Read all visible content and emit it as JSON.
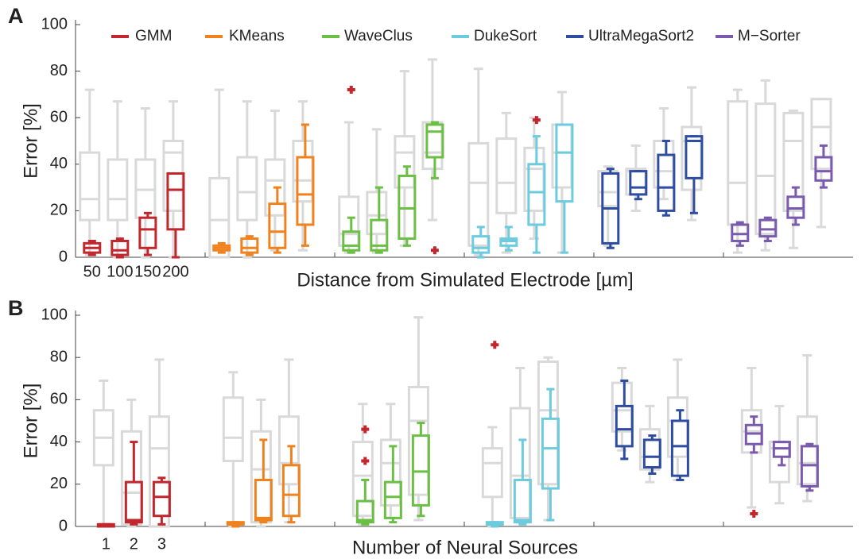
{
  "chart_data": [
    {
      "type": "box",
      "panel_label": "A",
      "x_label": "Distance from Simulated Electrode [µm]",
      "y_label": "Error [%]",
      "categories": [
        "50",
        "100",
        "150",
        "200"
      ],
      "ylim": [
        0,
        100
      ],
      "yticks": [
        0,
        20,
        40,
        60,
        80,
        100
      ],
      "legend": "top",
      "reference_color": "#d9d9d9",
      "outlier_color": "#c1272d",
      "series": [
        {
          "name": "GMM",
          "color": "#c1272d",
          "boxes": [
            {
              "min": 1,
              "q1": 2,
              "median": 4,
              "q3": 6,
              "max": 7
            },
            {
              "min": 0,
              "q1": 1,
              "median": 3,
              "q3": 7,
              "max": 8
            },
            {
              "min": 1,
              "q1": 4,
              "median": 12,
              "q3": 17,
              "max": 19
            },
            {
              "min": 0,
              "q1": 12,
              "median": 29,
              "q3": 36,
              "max": 36
            }
          ],
          "reference": [
            {
              "min": 1,
              "q1": 16,
              "median": 25,
              "q3": 45,
              "max": 72
            },
            {
              "min": 0,
              "q1": 16,
              "median": 25,
              "q3": 42,
              "max": 67
            },
            {
              "min": 0,
              "q1": 17,
              "median": 29,
              "q3": 42,
              "max": 64
            },
            {
              "min": 0,
              "q1": 20,
              "median": 45,
              "q3": 50,
              "max": 67
            }
          ]
        },
        {
          "name": "KMeans",
          "color": "#f0821e",
          "boxes": [
            {
              "min": 2,
              "q1": 3,
              "median": 4,
              "q3": 5,
              "max": 6
            },
            {
              "min": 1,
              "q1": 2,
              "median": 4,
              "q3": 8,
              "max": 9
            },
            {
              "min": 2,
              "q1": 4,
              "median": 11,
              "q3": 23,
              "max": 30
            },
            {
              "min": 5,
              "q1": 14,
              "median": 27,
              "q3": 43,
              "max": 57
            }
          ],
          "reference": [
            {
              "min": 0,
              "q1": 0,
              "median": 16,
              "q3": 34,
              "max": 72
            },
            {
              "min": 0,
              "q1": 16,
              "median": 28,
              "q3": 43,
              "max": 67
            },
            {
              "min": 3,
              "q1": 18,
              "median": 33,
              "q3": 42,
              "max": 63
            },
            {
              "min": 3,
              "q1": 24,
              "median": 33,
              "q3": 50,
              "max": 67
            }
          ]
        },
        {
          "name": "WaveClus",
          "color": "#6bbf45",
          "boxes": [
            {
              "min": 2,
              "q1": 3,
              "median": 5,
              "q3": 11,
              "max": 17,
              "outliers": [
                72
              ]
            },
            {
              "min": 2,
              "q1": 3,
              "median": 5,
              "q3": 16,
              "max": 30
            },
            {
              "min": 5,
              "q1": 8,
              "median": 21,
              "q3": 35,
              "max": 39
            },
            {
              "min": 34,
              "q1": 43,
              "median": 54,
              "q3": 57,
              "max": 58,
              "outliers": [
                3
              ]
            }
          ],
          "reference": [
            {
              "min": 2,
              "q1": 5,
              "median": 10,
              "q3": 26,
              "max": 58
            },
            {
              "min": 2,
              "q1": 10,
              "median": 18,
              "q3": 28,
              "max": 55
            },
            {
              "min": 5,
              "q1": 30,
              "median": 45,
              "q3": 52,
              "max": 80
            },
            {
              "min": 16,
              "q1": 38,
              "median": 45,
              "q3": 58,
              "max": 85
            }
          ]
        },
        {
          "name": "DukeSort",
          "color": "#6ccbdc",
          "boxes": [
            {
              "min": 0,
              "q1": 2,
              "median": 4,
              "q3": 9,
              "max": 13
            },
            {
              "min": 3,
              "q1": 5,
              "median": 7,
              "q3": 8,
              "max": 13
            },
            {
              "min": 2,
              "q1": 14,
              "median": 28,
              "q3": 40,
              "max": 52,
              "outliers": [
                59
              ]
            },
            {
              "min": 2,
              "q1": 24,
              "median": 45,
              "q3": 57,
              "max": 57
            }
          ],
          "reference": [
            {
              "min": 1,
              "q1": 5,
              "median": 32,
              "q3": 49,
              "max": 81
            },
            {
              "min": 2,
              "q1": 19,
              "median": 32,
              "q3": 51,
              "max": 62
            },
            {
              "min": 8,
              "q1": 20,
              "median": 38,
              "q3": 47,
              "max": 60
            },
            {
              "min": 2,
              "q1": 30,
              "median": 45,
              "q3": 57,
              "max": 71
            }
          ]
        },
        {
          "name": "UltraMegaSort2",
          "color": "#2e4da0",
          "boxes": [
            {
              "min": 4,
              "q1": 6,
              "median": 21,
              "q3": 36,
              "max": 38
            },
            {
              "min": 25,
              "q1": 27,
              "median": 30,
              "q3": 37,
              "max": 37
            },
            {
              "min": 18,
              "q1": 20,
              "median": 30,
              "q3": 44,
              "max": 50
            },
            {
              "min": 19,
              "q1": 34,
              "median": 50,
              "q3": 52,
              "max": 52
            }
          ],
          "reference": [
            {
              "min": 5,
              "q1": 22,
              "median": 28,
              "q3": 37,
              "max": 39
            },
            {
              "min": 20,
              "q1": 27,
              "median": 37,
              "q3": 38,
              "max": 48
            },
            {
              "min": 25,
              "q1": 30,
              "median": 37,
              "q3": 50,
              "max": 64
            },
            {
              "min": 16,
              "q1": 29,
              "median": 50,
              "q3": 56,
              "max": 73
            }
          ]
        },
        {
          "name": "M−Sorter",
          "color": "#7a5aad",
          "boxes": [
            {
              "min": 5,
              "q1": 7,
              "median": 10,
              "q3": 14,
              "max": 15
            },
            {
              "min": 7,
              "q1": 9,
              "median": 12,
              "q3": 16,
              "max": 17
            },
            {
              "min": 14,
              "q1": 17,
              "median": 21,
              "q3": 26,
              "max": 30
            },
            {
              "min": 30,
              "q1": 33,
              "median": 37,
              "q3": 43,
              "max": 48
            }
          ],
          "reference": [
            {
              "min": 2,
              "q1": 14,
              "median": 32,
              "q3": 67,
              "max": 72
            },
            {
              "min": 3,
              "q1": 10,
              "median": 35,
              "q3": 66,
              "max": 76
            },
            {
              "min": 4,
              "q1": 20,
              "median": 50,
              "q3": 62,
              "max": 63
            },
            {
              "min": 13,
              "q1": 38,
              "median": 56,
              "q3": 68,
              "max": 68
            }
          ]
        }
      ]
    },
    {
      "type": "box",
      "panel_label": "B",
      "x_label": "Number of Neural Sources",
      "y_label": "Error [%]",
      "categories": [
        "1",
        "2",
        "3"
      ],
      "ylim": [
        0,
        100
      ],
      "yticks": [
        0,
        20,
        40,
        60,
        80,
        100
      ],
      "reference_color": "#d9d9d9",
      "outlier_color": "#c1272d",
      "series": [
        {
          "color": "#c1272d",
          "boxes": [
            {
              "min": 0,
              "q1": 0,
              "median": 1,
              "q3": 1,
              "max": 1
            },
            {
              "min": 1,
              "q1": 2,
              "median": 3,
              "q3": 21,
              "max": 40
            },
            {
              "min": 1,
              "q1": 5,
              "median": 14,
              "q3": 21,
              "max": 23
            }
          ],
          "reference": [
            {
              "min": 0,
              "q1": 29,
              "median": 42,
              "q3": 55,
              "max": 69
            },
            {
              "min": 0,
              "q1": 1,
              "median": 16,
              "q3": 45,
              "max": 60
            },
            {
              "min": 0,
              "q1": 0,
              "median": 37,
              "q3": 52,
              "max": 79
            }
          ]
        },
        {
          "color": "#f0821e",
          "boxes": [
            {
              "min": 0,
              "q1": 1,
              "median": 1,
              "q3": 2,
              "max": 2
            },
            {
              "min": 2,
              "q1": 3,
              "median": 4,
              "q3": 22,
              "max": 41
            },
            {
              "min": 2,
              "q1": 5,
              "median": 15,
              "q3": 29,
              "max": 38
            }
          ],
          "reference": [
            {
              "min": 0,
              "q1": 31,
              "median": 42,
              "q3": 61,
              "max": 73
            },
            {
              "min": 0,
              "q1": 2,
              "median": 27,
              "q3": 45,
              "max": 60
            },
            {
              "min": 2,
              "q1": 20,
              "median": 30,
              "q3": 52,
              "max": 79
            }
          ]
        },
        {
          "color": "#6bbf45",
          "boxes": [
            {
              "min": 1,
              "q1": 2,
              "median": 3,
              "q3": 12,
              "max": 22,
              "outliers": [
                31,
                46
              ]
            },
            {
              "min": 2,
              "q1": 4,
              "median": 14,
              "q3": 21,
              "max": 38
            },
            {
              "min": 5,
              "q1": 10,
              "median": 26,
              "q3": 43,
              "max": 49
            }
          ],
          "reference": [
            {
              "min": 1,
              "q1": 5,
              "median": 24,
              "q3": 40,
              "max": 58
            },
            {
              "min": 4,
              "q1": 10,
              "median": 30,
              "q3": 41,
              "max": 58
            },
            {
              "min": 3,
              "q1": 15,
              "median": 50,
              "q3": 66,
              "max": 99
            }
          ]
        },
        {
          "color": "#6ccbdc",
          "boxes": [
            {
              "min": 0,
              "q1": 1,
              "median": 1,
              "q3": 2,
              "max": 2,
              "outliers": [
                86
              ]
            },
            {
              "min": 1,
              "q1": 2,
              "median": 3,
              "q3": 22,
              "max": 41
            },
            {
              "min": 3,
              "q1": 18,
              "median": 37,
              "q3": 51,
              "max": 65
            }
          ],
          "reference": [
            {
              "min": 0,
              "q1": 14,
              "median": 30,
              "q3": 37,
              "max": 47
            },
            {
              "min": 2,
              "q1": 4,
              "median": 24,
              "q3": 56,
              "max": 75
            },
            {
              "min": 3,
              "q1": 20,
              "median": 55,
              "q3": 78,
              "max": 80
            }
          ]
        },
        {
          "color": "#2e4da0",
          "boxes": [
            {
              "min": 32,
              "q1": 38,
              "median": 46,
              "q3": 57,
              "max": 69
            },
            {
              "min": 25,
              "q1": 28,
              "median": 33,
              "q3": 41,
              "max": 43
            },
            {
              "min": 22,
              "q1": 24,
              "median": 38,
              "q3": 50,
              "max": 55
            }
          ],
          "reference": [
            {
              "min": 36,
              "q1": 45,
              "median": 55,
              "q3": 68,
              "max": 75
            },
            {
              "min": 21,
              "q1": 27,
              "median": 33,
              "q3": 46,
              "max": 57
            },
            {
              "min": 22,
              "q1": 33,
              "median": 50,
              "q3": 61,
              "max": 79
            }
          ]
        },
        {
          "color": "#7a5aad",
          "boxes": [
            {
              "min": 35,
              "q1": 39,
              "median": 44,
              "q3": 48,
              "max": 52,
              "outliers": [
                6
              ]
            },
            {
              "min": 29,
              "q1": 33,
              "median": 37,
              "q3": 40,
              "max": 40
            },
            {
              "min": 17,
              "q1": 19,
              "median": 29,
              "q3": 38,
              "max": 39
            }
          ],
          "reference": [
            {
              "min": 9,
              "q1": 35,
              "median": 45,
              "q3": 55,
              "max": 75
            },
            {
              "min": 11,
              "q1": 21,
              "median": 37,
              "q3": 40,
              "max": 57
            },
            {
              "min": 12,
              "q1": 20,
              "median": 30,
              "q3": 52,
              "max": 81
            }
          ]
        }
      ]
    }
  ]
}
